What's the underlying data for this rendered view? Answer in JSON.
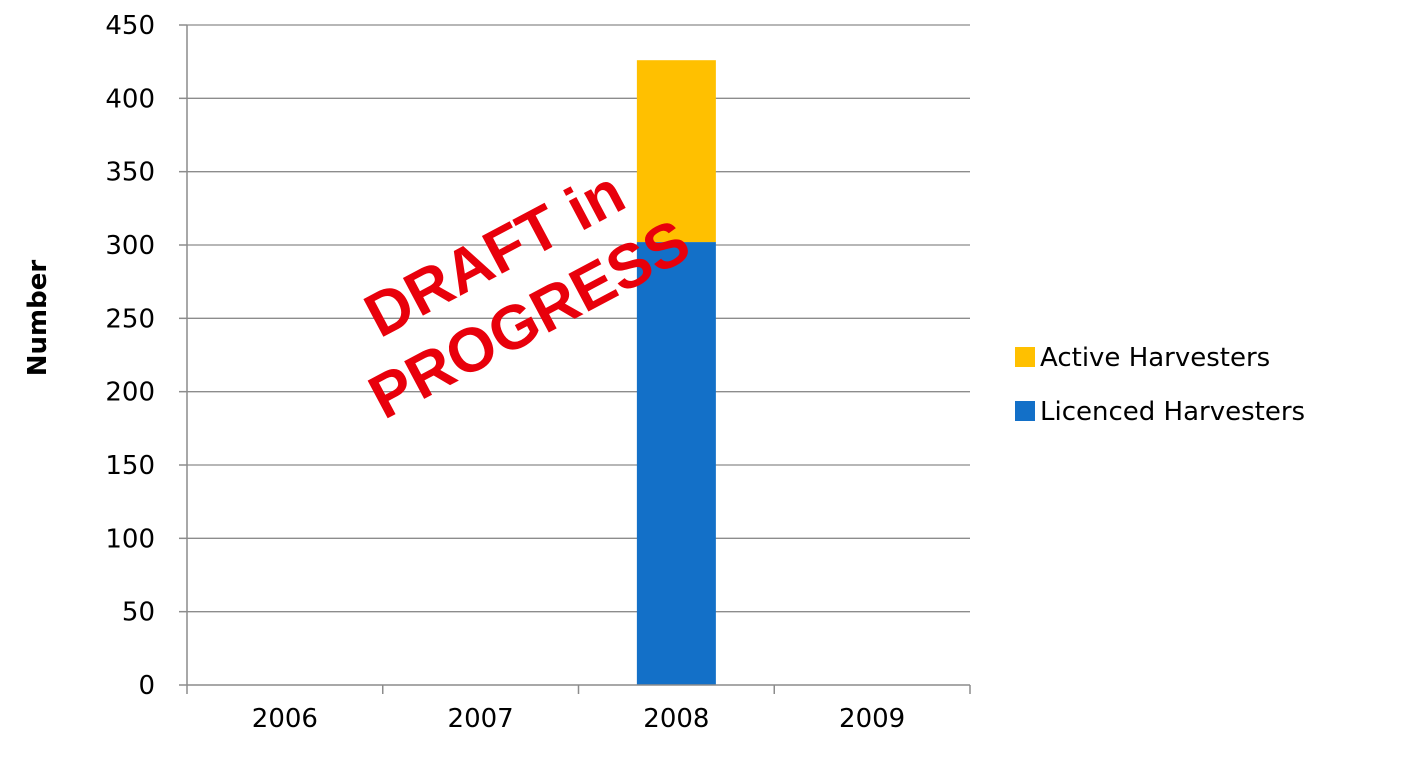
{
  "chart_data": {
    "type": "bar",
    "stacked": true,
    "categories": [
      "2006",
      "2007",
      "2008",
      "2009"
    ],
    "series": [
      {
        "name": "Licenced Harvesters",
        "values": [
          null,
          null,
          302,
          null
        ],
        "color": "#1370c8"
      },
      {
        "name": "Active Harvesters",
        "values": [
          null,
          null,
          124,
          null
        ],
        "color": "#ffc000"
      }
    ],
    "title": "",
    "xlabel": "",
    "ylabel": "Number",
    "ylim": [
      0,
      450
    ],
    "yticks": [
      0,
      50,
      100,
      150,
      200,
      250,
      300,
      350,
      400,
      450
    ],
    "grid": true,
    "legend_position": "right",
    "legend_order": [
      "Active Harvesters",
      "Licenced Harvesters"
    ]
  },
  "watermark": {
    "line1": "DRAFT in",
    "line2": "PROGRESS",
    "color": "#e8000b"
  }
}
